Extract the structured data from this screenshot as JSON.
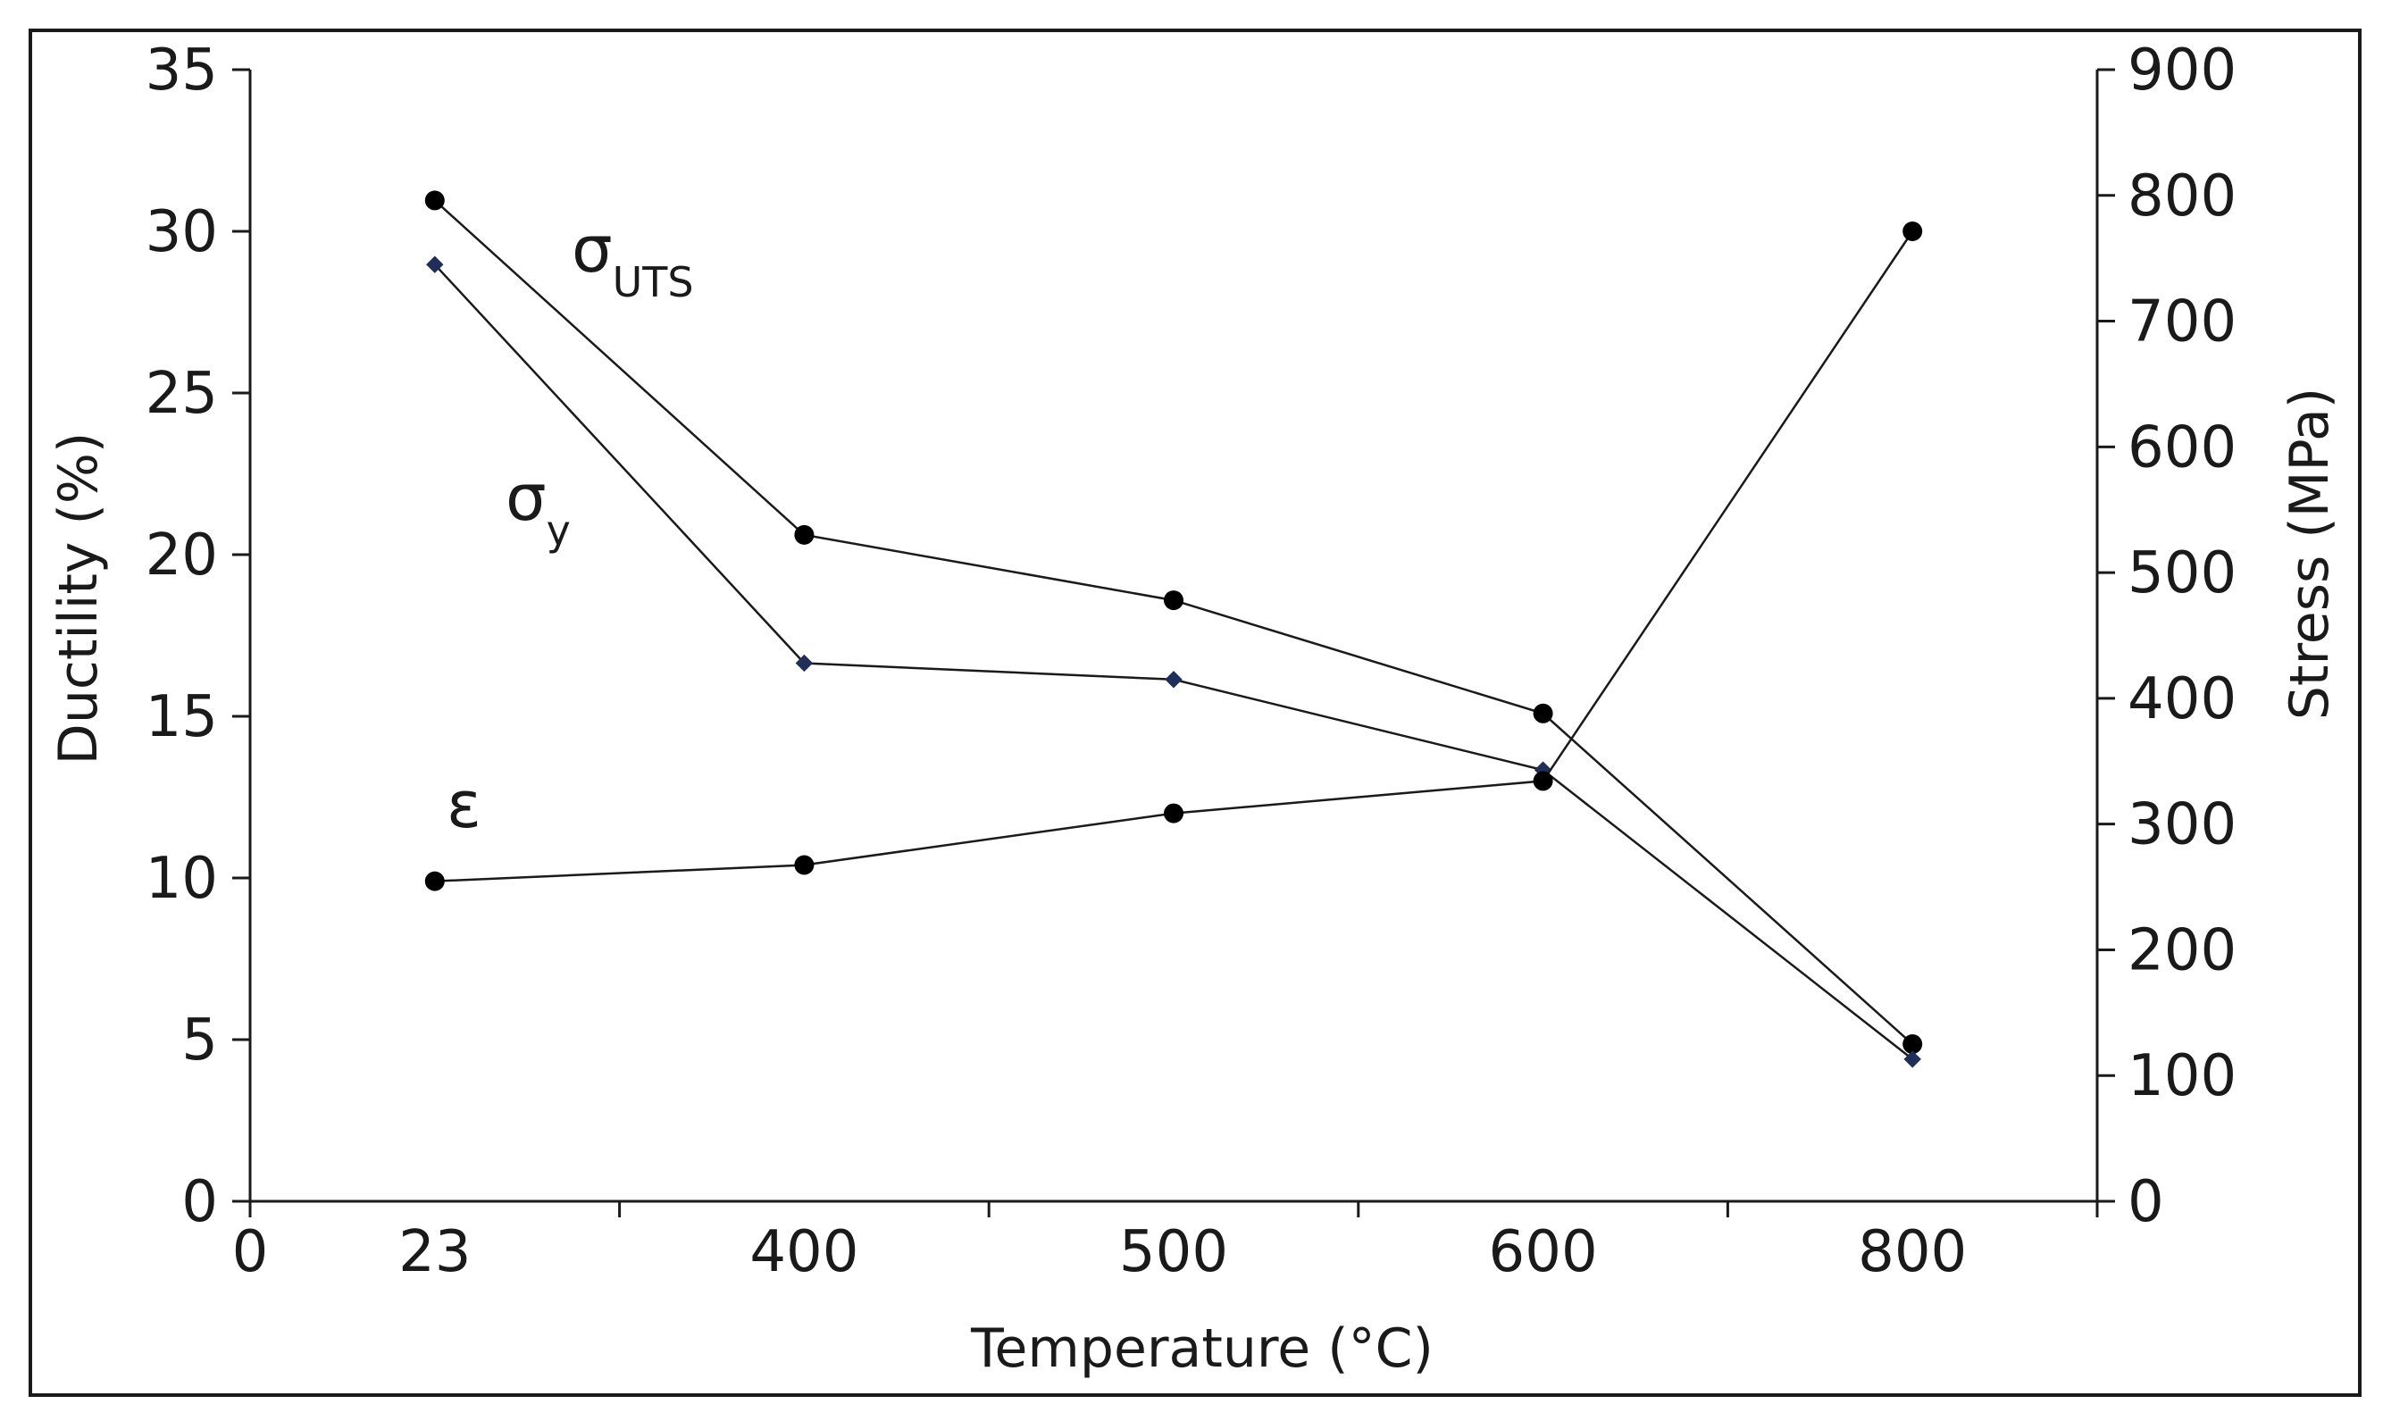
{
  "chart_data": {
    "type": "line",
    "xlabel": "Temperature (°C)",
    "ylabel": "Ductility (%)",
    "y2label": "Stress (MPa)",
    "x_tick_labels": [
      "0",
      "23",
      "400",
      "500",
      "600",
      "800"
    ],
    "categories": [
      "23",
      "400",
      "500",
      "600",
      "800"
    ],
    "ylim": [
      0,
      35
    ],
    "y_ticks": [
      "0",
      "5",
      "10",
      "15",
      "20",
      "25",
      "30",
      "35"
    ],
    "y2lim": [
      0,
      900
    ],
    "y2_ticks": [
      "0",
      "100",
      "200",
      "300",
      "400",
      "500",
      "600",
      "700",
      "800",
      "900"
    ],
    "grid": false,
    "series": [
      {
        "name": "σUTS",
        "label_main": "σ",
        "label_sub": "UTS",
        "axis": "right",
        "marker": "circle",
        "values": [
          796,
          530,
          478,
          388,
          125
        ]
      },
      {
        "name": "σy",
        "label_main": "σ",
        "label_sub": "y",
        "axis": "right",
        "marker": "diamond",
        "values": [
          745,
          428,
          415,
          343,
          113
        ]
      },
      {
        "name": "ε",
        "label_main": "ε",
        "label_sub": "",
        "axis": "left",
        "marker": "circle",
        "values": [
          9.9,
          10.4,
          12.0,
          13.0,
          30.0
        ]
      }
    ]
  }
}
